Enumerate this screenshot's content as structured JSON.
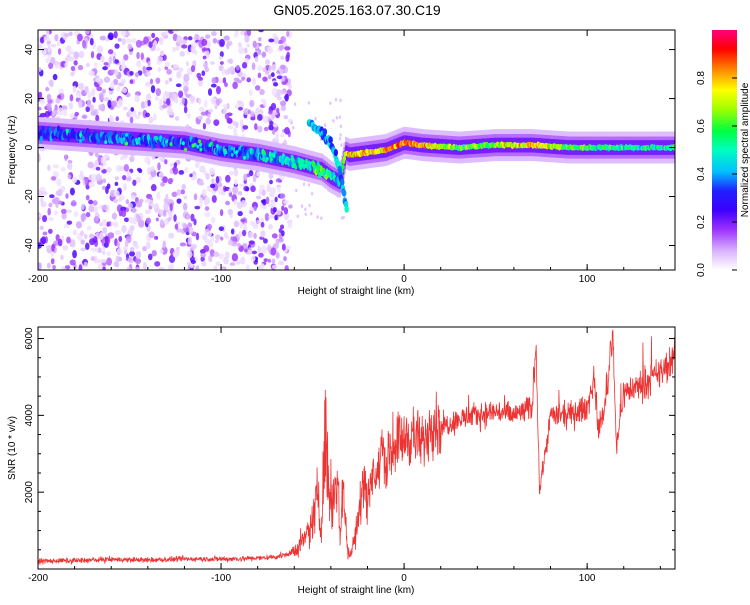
{
  "page_title": "GN05.2025.163.07.30.C19",
  "chart_data": [
    {
      "type": "heatmap",
      "xlabel": "Height of straight line (km)",
      "ylabel": "Frequency (Hz)",
      "xlim": [
        -200,
        148
      ],
      "ylim": [
        -50,
        48
      ],
      "xticks": [
        -200,
        -100,
        0,
        100
      ],
      "yticks": [
        -40,
        -20,
        0,
        20,
        40
      ],
      "colorbar": {
        "label": "Normalized spectral amplitude",
        "range": [
          0,
          1
        ],
        "ticks": [
          "0.0",
          "0.2",
          "0.4",
          "0.6",
          "0.8"
        ],
        "tick_values": [
          0,
          0.2,
          0.4,
          0.6,
          0.8
        ],
        "colormap": [
          "#ffffff",
          "#d9b3ff",
          "#9b30ff",
          "#5a00e0",
          "#2020ff",
          "#00c0ff",
          "#00ffc0",
          "#00ff40",
          "#a0ff00",
          "#ffff00",
          "#ff8000",
          "#ff0000",
          "#ff0080"
        ]
      },
      "ridge": {
        "x": [
          -200,
          -180,
          -160,
          -140,
          -120,
          -100,
          -80,
          -60,
          -50,
          -45,
          -40,
          -35,
          -32,
          -30,
          -20,
          -10,
          0,
          10,
          30,
          50,
          70,
          90,
          110,
          130,
          148
        ],
        "frequency": [
          6,
          5,
          4,
          3,
          2,
          -1,
          -3,
          -6,
          -8,
          -9,
          -12,
          -14,
          -2,
          -3,
          -2,
          -1,
          2,
          1,
          0,
          1,
          1,
          0,
          0,
          0,
          0
        ],
        "amplitude": [
          0.35,
          0.3,
          0.3,
          0.35,
          0.3,
          0.35,
          0.4,
          0.45,
          0.55,
          0.6,
          0.5,
          0.4,
          0.7,
          0.8,
          0.75,
          0.8,
          0.85,
          0.8,
          0.6,
          0.65,
          0.8,
          0.6,
          0.55,
          0.5,
          0.5
        ]
      },
      "noise_region_x": [
        -200,
        -62
      ],
      "branch": {
        "x": [
          -52,
          -45,
          -40,
          -36,
          -33,
          -31
        ],
        "frequency": [
          10,
          6,
          2,
          -6,
          -18,
          -28
        ]
      }
    },
    {
      "type": "line",
      "xlabel": "Height of straight line (km)",
      "ylabel": "SNR (10 * v/v)",
      "xlim": [
        -200,
        148
      ],
      "ylim": [
        0,
        6300
      ],
      "xticks": [
        -200,
        -100,
        0,
        100
      ],
      "yticks": [
        2000,
        4000,
        6000
      ],
      "series": [
        {
          "color": "#ee3333",
          "x": [
            -200,
            -180,
            -160,
            -140,
            -120,
            -100,
            -80,
            -70,
            -62,
            -55,
            -50,
            -47,
            -45,
            -43,
            -41,
            -39,
            -37,
            -35,
            -33,
            -31,
            -29,
            -27,
            -25,
            -22,
            -20,
            -17,
            -15,
            -12,
            -10,
            -5,
            0,
            5,
            10,
            15,
            20,
            30,
            40,
            50,
            60,
            70,
            72,
            74,
            80,
            90,
            100,
            104,
            106,
            110,
            114,
            116,
            120,
            130,
            140,
            148
          ],
          "y": [
            200,
            220,
            250,
            230,
            260,
            260,
            280,
            320,
            400,
            700,
            1200,
            2000,
            1300,
            3600,
            2200,
            1600,
            2800,
            900,
            2300,
            500,
            300,
            1000,
            1400,
            2400,
            1800,
            2700,
            2200,
            3300,
            2700,
            3300,
            3400,
            3500,
            3200,
            3900,
            3700,
            3900,
            4000,
            4100,
            4000,
            4200,
            6000,
            2000,
            4000,
            4000,
            4200,
            5000,
            3600,
            4300,
            6200,
            3200,
            4600,
            4800,
            5100,
            5500
          ]
        }
      ]
    }
  ]
}
